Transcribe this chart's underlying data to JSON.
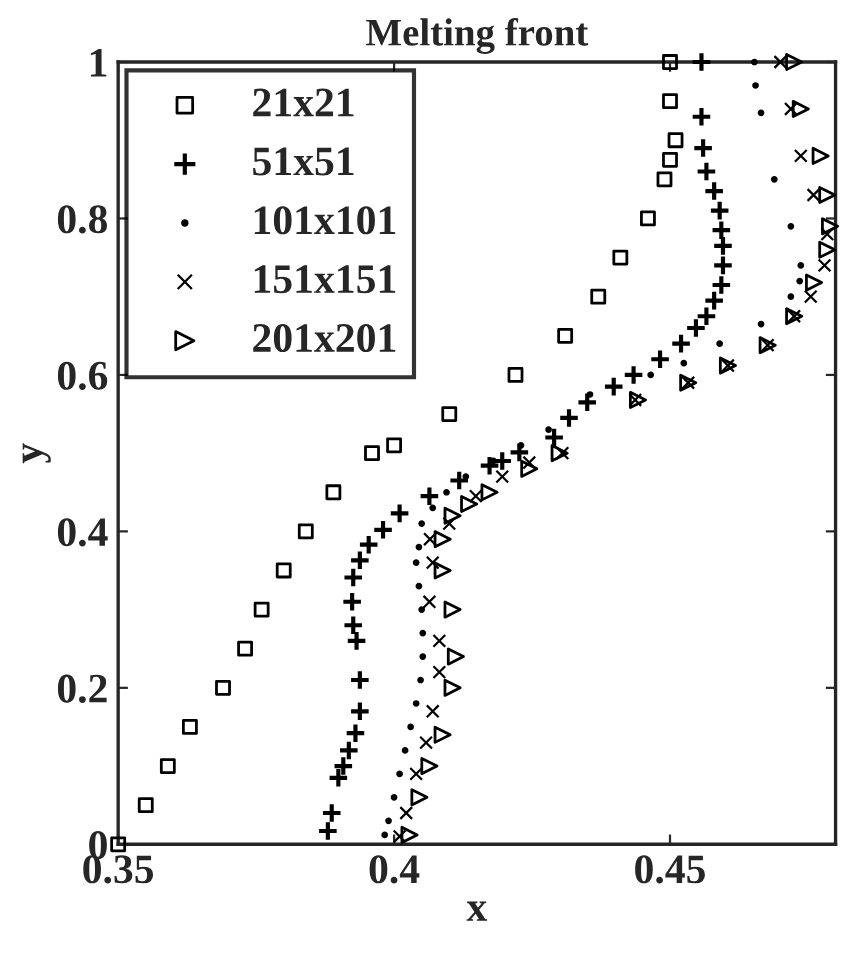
{
  "chart_data": {
    "type": "scatter",
    "title": "Melting front",
    "xlabel": "x",
    "ylabel": "y",
    "xlim": [
      0.35,
      0.48
    ],
    "ylim": [
      0,
      1
    ],
    "xticks": [
      0.35,
      0.4,
      0.45
    ],
    "yticks": [
      0,
      0.2,
      0.4,
      0.6,
      0.8,
      1
    ],
    "grid": false,
    "legend": "top left",
    "series": [
      {
        "name": "21x21",
        "color": "#000000",
        "marker": "square",
        "x": [
          0.35,
          0.355,
          0.359,
          0.363,
          0.369,
          0.373,
          0.376,
          0.38,
          0.384,
          0.389,
          0.396,
          0.4,
          0.41,
          0.422,
          0.431,
          0.437,
          0.441,
          0.446,
          0.449,
          0.45,
          0.451,
          0.45,
          0.45
        ],
        "values": [
          0,
          0.05,
          0.1,
          0.15,
          0.2,
          0.25,
          0.3,
          0.35,
          0.4,
          0.45,
          0.5,
          0.51,
          0.55,
          0.6,
          0.65,
          0.7,
          0.75,
          0.8,
          0.85,
          0.875,
          0.9,
          0.95,
          1.0
        ]
      },
      {
        "name": "51x51",
        "color": "#000000",
        "marker": "plus",
        "x": [
          0.388,
          0.3887,
          0.3899,
          0.3908,
          0.3918,
          0.393,
          0.3938,
          0.3938,
          0.3932,
          0.3926,
          0.3924,
          0.3926,
          0.3938,
          0.3954,
          0.398,
          0.401,
          0.4064,
          0.4118,
          0.4173,
          0.4196,
          0.4227,
          0.429,
          0.4317,
          0.435,
          0.4398,
          0.4434,
          0.4482,
          0.452,
          0.4547,
          0.4566,
          0.458,
          0.4593,
          0.4596,
          0.4596,
          0.4593,
          0.459,
          0.458,
          0.4566,
          0.456,
          0.4557,
          0.4557
        ],
        "values": [
          0.017,
          0.04,
          0.085,
          0.1,
          0.12,
          0.142,
          0.17,
          0.21,
          0.26,
          0.28,
          0.31,
          0.341,
          0.363,
          0.383,
          0.402,
          0.423,
          0.445,
          0.465,
          0.484,
          0.49,
          0.501,
          0.52,
          0.545,
          0.565,
          0.585,
          0.6,
          0.62,
          0.64,
          0.66,
          0.675,
          0.695,
          0.715,
          0.74,
          0.765,
          0.785,
          0.81,
          0.835,
          0.86,
          0.89,
          0.93,
          1.0
        ]
      },
      {
        "name": "101x101",
        "color": "#000000",
        "marker": "point",
        "x": [
          0.3983,
          0.399,
          0.4,
          0.401,
          0.402,
          0.403,
          0.404,
          0.4048,
          0.4052,
          0.4052,
          0.405,
          0.4045,
          0.404,
          0.4045,
          0.405,
          0.407,
          0.4095,
          0.413,
          0.418,
          0.423,
          0.428,
          0.4355,
          0.4465,
          0.4525,
          0.459,
          0.4665,
          0.4719,
          0.4735,
          0.4737,
          0.4719,
          0.4689,
          0.4665,
          0.4655,
          0.4653
        ],
        "values": [
          0.012,
          0.03,
          0.06,
          0.09,
          0.12,
          0.15,
          0.18,
          0.21,
          0.24,
          0.27,
          0.3,
          0.33,
          0.36,
          0.38,
          0.41,
          0.43,
          0.45,
          0.47,
          0.49,
          0.51,
          0.53,
          0.575,
          0.6,
          0.615,
          0.64,
          0.665,
          0.7,
          0.72,
          0.74,
          0.79,
          0.85,
          0.935,
          0.97,
          1.0
        ]
      },
      {
        "name": "151x151",
        "color": "#000000",
        "marker": "x",
        "x": [
          0.401,
          0.4022,
          0.404,
          0.4058,
          0.407,
          0.4082,
          0.4082,
          0.4064,
          0.407,
          0.4065,
          0.41,
          0.4148,
          0.4196,
          0.4245,
          0.4305,
          0.4437,
          0.4533,
          0.4605,
          0.4677,
          0.4725,
          0.4755,
          0.478,
          0.4785,
          0.476,
          0.4737,
          0.4719,
          0.47
        ],
        "values": [
          0.01,
          0.04,
          0.09,
          0.13,
          0.17,
          0.22,
          0.26,
          0.31,
          0.36,
          0.39,
          0.41,
          0.445,
          0.47,
          0.488,
          0.5,
          0.568,
          0.59,
          0.612,
          0.638,
          0.675,
          0.7,
          0.74,
          0.78,
          0.83,
          0.88,
          0.94,
          1.0
        ]
      },
      {
        "name": "201x201",
        "color": "#000000",
        "marker": "triangle",
        "x": [
          0.4028,
          0.4046,
          0.4064,
          0.4088,
          0.4106,
          0.4112,
          0.4106,
          0.4088,
          0.4088,
          0.4106,
          0.4136,
          0.4173,
          0.4245,
          0.43,
          0.4442,
          0.4533,
          0.4605,
          0.4677,
          0.4725,
          0.4761,
          0.4785,
          0.479,
          0.4785,
          0.4773,
          0.4737,
          0.4725
        ],
        "values": [
          0.012,
          0.06,
          0.1,
          0.14,
          0.2,
          0.24,
          0.3,
          0.35,
          0.39,
          0.42,
          0.435,
          0.45,
          0.48,
          0.5,
          0.568,
          0.59,
          0.612,
          0.638,
          0.675,
          0.718,
          0.76,
          0.79,
          0.83,
          0.88,
          0.94,
          1.0
        ]
      }
    ]
  }
}
